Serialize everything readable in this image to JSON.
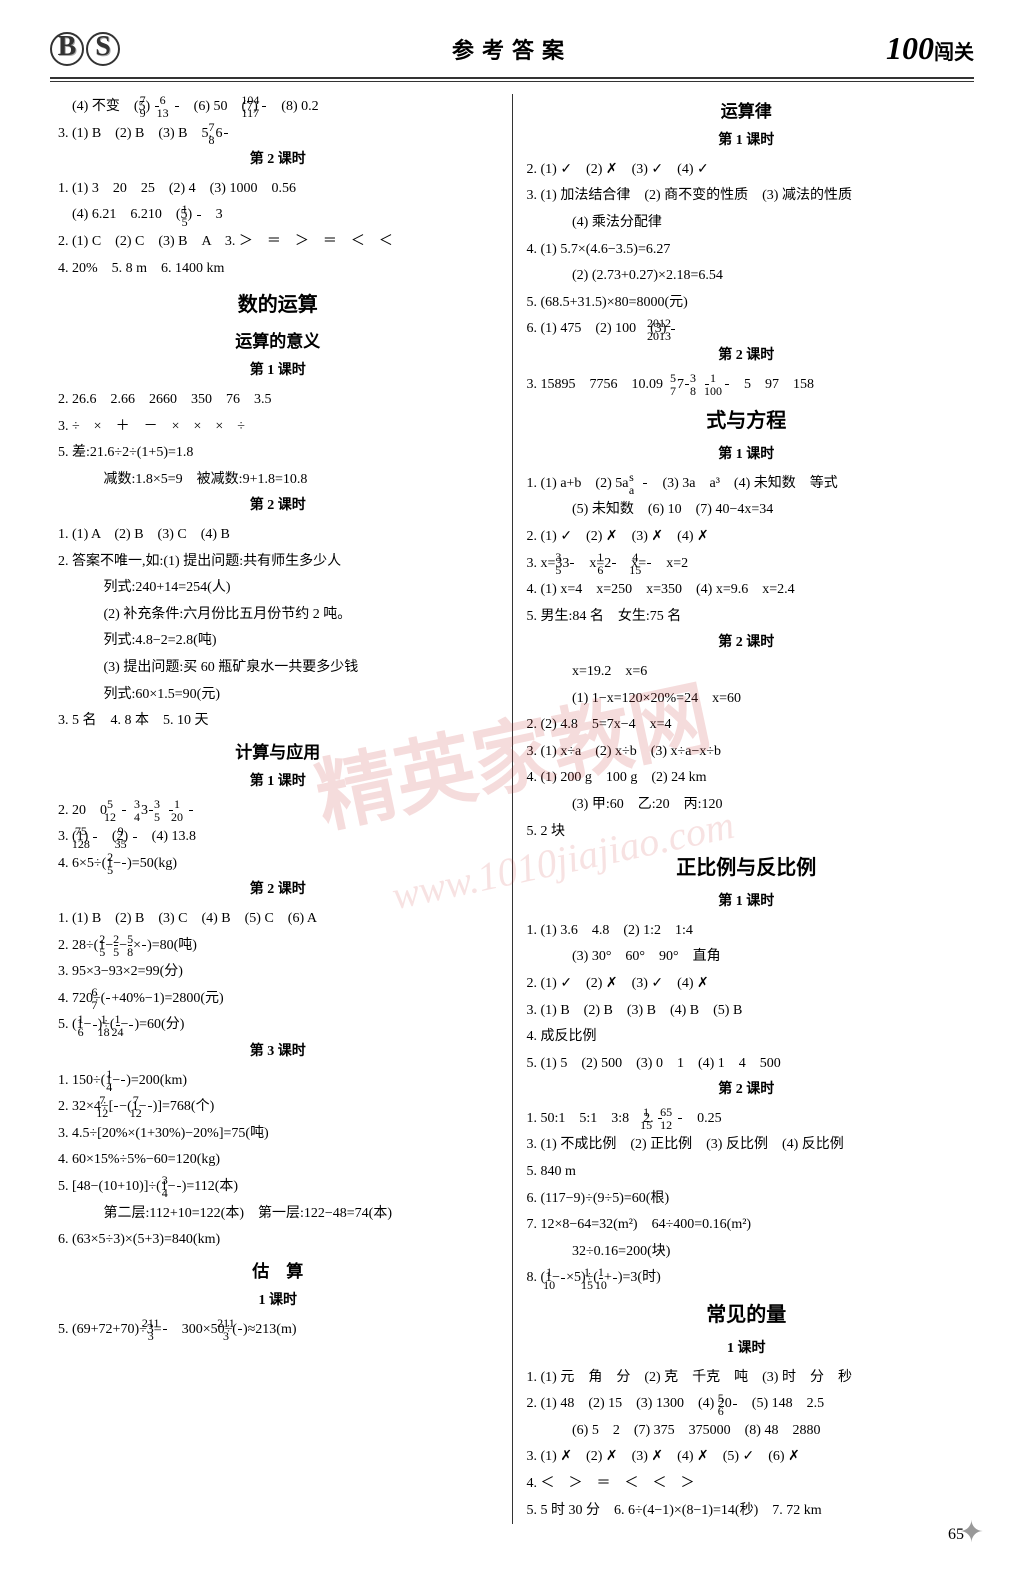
{
  "header": {
    "bs_b": "B",
    "bs_s": "S",
    "title": "参考答案",
    "brand_num": "100",
    "brand_text": "闯关"
  },
  "left": {
    "l1a": "　(4) 不变　(5) ",
    "l1b": "　(6) 50　(7) ",
    "l1c": "　(8) 0.2",
    "l2a": "3. (1) B　(2) B　(3) B　5. 6",
    "sec2": "第 2 课时",
    "l3": "1. (1) 3　20　25　(2) 4　(3) 1000　0.56",
    "l4a": "　(4) 6.21　6.210　(5) ",
    "l4b": "　3",
    "l5": "2. (1) C　(2) C　(3) B　A　3. ＞　＝　＞　＝　＜　＜",
    "l6": "4. 20%　5. 8 m　6. 1400 km",
    "t_sdys": "数的运算",
    "t_ysyy": "运算的意义",
    "t_k1": "第 1 课时",
    "l7": "2. 26.6　2.66　2660　350　76　3.5",
    "l8": "3. ÷　×　＋　－　×　×　×　÷",
    "l9": "5. 差:21.6÷2÷(1+5)=1.8",
    "l10": "　 减数:1.8×5=9　被减数:9+1.8=10.8",
    "t_k2a": "第 2 课时",
    "l11": "1. (1) A　(2) B　(3) C　(4) B",
    "l12": "2. 答案不唯一,如:(1) 提出问题:共有师生多少人",
    "l13": "　 列式:240+14=254(人)",
    "l14": "　 (2) 补充条件:六月份比五月份节约 2 吨。",
    "l15": "　 列式:4.8−2=2.8(吨)",
    "l16": "　 (3) 提出问题:买 60 瓶矿泉水一共要多少钱",
    "l17": "　 列式:60×1.5=90(元)",
    "l18": "3. 5 名　4. 8 本　5. 10 天",
    "t_jsyy": "计算与应用",
    "t_k1b": "第 1 课时",
    "l19a": "2. 20　0　",
    "l19b": "　3",
    "l20a": "3. (1) ",
    "l20b": "　(2) ",
    "l20c": "　(4) 13.8",
    "l21a": "4. 6×5÷(1−",
    "l21b": ")=50(kg)",
    "t_k2b": "第 2 课时",
    "l22": "1. (1) B　(2) B　(3) C　(4) B　(5) C　(6) A",
    "l23a": "2. 28÷(1−",
    "l23b": "−",
    "l23c": "×",
    "l23d": ")=80(吨)",
    "l24": "3. 95×3−93×2=99(分)",
    "l25a": "4. 720÷(",
    "l25b": "+40%−1)=2800(元)",
    "l26a": "5. (1−",
    "l26b": ")÷(",
    "l26c": "−",
    "l26d": ")=60(分)",
    "t_k3": "第 3 课时",
    "l27a": "1. 150÷(1−",
    "l27b": ")=200(km)",
    "l28a": "2. 32×4÷[",
    "l28b": "−(1−",
    "l28c": ")]=768(个)",
    "l29": "3. 4.5÷[20%×(1+30%)−20%]=75(吨)",
    "l30": "4. 60×15%÷5%−60=120(kg)",
    "l31a": "5. [48−(10+10)]÷(1−",
    "l31b": ")=112(本)",
    "l32": "　 第二层:112+10=122(本)　第一层:122−48=74(本)",
    "l33": "6. (63×5÷3)×(5+3)=840(km)",
    "t_gs": "估　算",
    "t_1ks": "1 课时",
    "l34a": "5. (69+72+70)÷3=",
    "l34b": "　300×50÷(",
    "l34c": ")≈213(m)"
  },
  "right": {
    "t_ysl": "运算律",
    "t_k1": "第 1 课时",
    "r1": "2. (1) ✓　(2) ✗　(3) ✓　(4) ✓",
    "r2": "3. (1) 加法结合律　(2) 商不变的性质　(3) 减法的性质",
    "r3": "　 (4) 乘法分配律",
    "r4": "4. (1) 5.7×(4.6−3.5)=6.27",
    "r5": "　 (2) (2.73+0.27)×2.18=6.54",
    "r6": "5. (68.5+31.5)×80=8000(元)",
    "r7a": "6. (1) 475　(2) 100　(3) ",
    "t_k2": "第 2 课时",
    "r8a": "3. 15895　7756　10.09　7",
    "r8b": "　5　97　158",
    "t_syfc": "式与方程",
    "t_k1b": "第 1 课时",
    "r9a": "1. (1) a+b　(2) 5a　",
    "r9b": "　(3) 3a　a³　(4) 未知数　等式",
    "r10": "　 (5) 未知数　(6) 10　(7) 40−4x=34",
    "r11": "2. (1) ✓　(2) ✗　(3) ✗　(4) ✗",
    "r12a": "3. x=33",
    "r12b": "　x=2",
    "r12c": "　x=",
    "r12d": "　x=2",
    "r13": "4. (1) x=4　x=250　x=350　(4) x=9.6　x=2.4",
    "r14": "5. 男生:84 名　女生:75 名",
    "t_k2b": "第 2 课时",
    "r15": "　 x=19.2　x=6",
    "r16": "　 (1) 1−x=120×20%=24　x=60",
    "r17": "2. (2) 4.8　5=7x−4　x=4",
    "r18": "3. (1) x÷a　(2) x÷b　(3) x÷a−x÷b",
    "r19": "4. (1) 200 g　100 g　(2) 24 km",
    "r20": "　 (3) 甲:60　乙:20　丙:120",
    "r21": "5. 2 块",
    "t_zbfb": "正比例与反比例",
    "t_k1c": "第 1 课时",
    "r22": "1. (1) 3.6　4.8　(2) 1:2　1:4",
    "r23": "　 (3) 30°　60°　90°　直角",
    "r24": "2. (1) ✓　(2) ✗　(3) ✓　(4) ✗",
    "r25": "3. (1) B　(2) B　(3) B　(4) B　(5) B",
    "r26": "4. 成反比例",
    "r27": "5. (1) 5　(2) 500　(3) 0　1　(4) 1　4　500",
    "t_k2c": "第 2 课时",
    "r28a": "1. 50:1　5:1　3:8　2. ",
    "r28b": "　0.25",
    "r29": "3. (1) 不成比例　(2) 正比例　(3) 反比例　(4) 反比例",
    "r30": "5. 840 m",
    "r31": "6. (117−9)÷(9÷5)=60(根)",
    "r32": "7. 12×8−64=32(m²)　64÷400=0.16(m²)",
    "r33": "　 32÷0.16=200(块)",
    "r34a": "8. (1−",
    "r34b": "×5)÷(",
    "r34c": "+",
    "r34d": ")=3(时)",
    "t_cjdl": "常见的量",
    "t_1ks": "1 课时",
    "r35": "1. (1) 元　角　分　(2) 克　千克　吨　(3) 时　分　秒",
    "r36a": "2. (1) 48　(2) 15　(3) 1300　(4) 20",
    "r36b": "　(5) 148　2.5",
    "r37": "　 (6) 5　2　(7) 375　375000　(8) 48　2880",
    "r38": "3. (1) ✗　(2) ✗　(3) ✗　(4) ✗　(5) ✓　(6) ✗",
    "r39": "4. ＜　＞　＝　＜　＜　＞",
    "r40": "5. 5 时 30 分　6. 6÷(4−1)×(8−1)=14(秒)　7. 72 km"
  },
  "fracs": {
    "f7_9": {
      "n": "7",
      "d": "9"
    },
    "f6_13": {
      "n": "6",
      "d": "13"
    },
    "f104_117": {
      "n": "104",
      "d": "117"
    },
    "f7_8": {
      "n": "7",
      "d": "8"
    },
    "f1_5": {
      "n": "1",
      "d": "5"
    },
    "f5_12": {
      "n": "5",
      "d": "12"
    },
    "f3_4": {
      "n": "3",
      "d": "4"
    },
    "f3_5": {
      "n": "3",
      "d": "5"
    },
    "f1_20": {
      "n": "1",
      "d": "20"
    },
    "f75_128": {
      "n": "75",
      "d": "128"
    },
    "f9_35": {
      "n": "9",
      "d": "35"
    },
    "f2_5": {
      "n": "2",
      "d": "5"
    },
    "f5_8": {
      "n": "5",
      "d": "8"
    },
    "f6_7": {
      "n": "6",
      "d": "7"
    },
    "f1_6": {
      "n": "1",
      "d": "6"
    },
    "f1_18": {
      "n": "1",
      "d": "18"
    },
    "f1_24": {
      "n": "1",
      "d": "24"
    },
    "f1_4": {
      "n": "1",
      "d": "4"
    },
    "f7_12": {
      "n": "7",
      "d": "12"
    },
    "f211_3": {
      "n": "211",
      "d": "3"
    },
    "f2012_2013": {
      "n": "2012",
      "d": "2013"
    },
    "f5_7": {
      "n": "5",
      "d": "7"
    },
    "f3_8": {
      "n": "3",
      "d": "8"
    },
    "f1_100": {
      "n": "1",
      "d": "100"
    },
    "fs_a": {
      "n": "s",
      "d": "a"
    },
    "f4_15": {
      "n": "4",
      "d": "15"
    },
    "f1_15": {
      "n": "1",
      "d": "15"
    },
    "f65_12": {
      "n": "65",
      "d": "12"
    },
    "f1_10": {
      "n": "1",
      "d": "10"
    },
    "f5_6": {
      "n": "5",
      "d": "6"
    }
  },
  "page_number": "65",
  "watermark": "精英家教网",
  "watermark2": "www.1010jiajiao.com"
}
